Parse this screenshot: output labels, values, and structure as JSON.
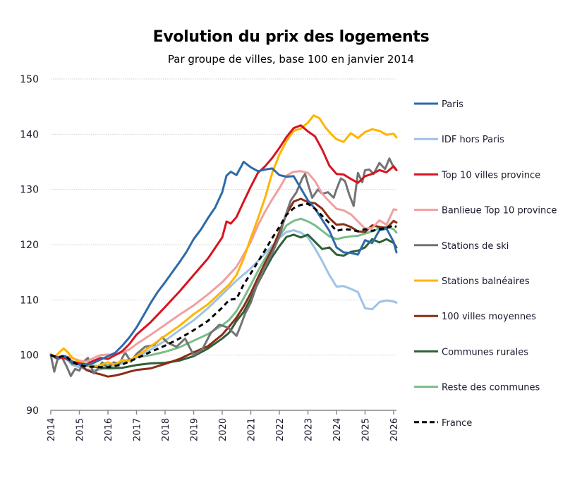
{
  "chart_data": {
    "type": "line",
    "title": "Evolution du prix des logements",
    "subtitle": "Par groupe de villes, base 100 en janvier 2014",
    "xlabel": "",
    "ylabel": "",
    "xlim": [
      2014,
      2026.1
    ],
    "ylim": [
      90,
      150
    ],
    "yticks": [
      90,
      100,
      110,
      120,
      130,
      140,
      150
    ],
    "xticks": [
      "2014",
      "2015",
      "2016",
      "2017",
      "2018",
      "2019",
      "2020",
      "2021",
      "2022",
      "2023",
      "2024",
      "2025",
      "2026"
    ],
    "grid": "horizontal-dotted",
    "legend_position": "right",
    "series": [
      {
        "name": "Paris",
        "color": "#2e6aa8",
        "dash": false,
        "x": [
          2014,
          2014.25,
          2014.5,
          2014.75,
          2015,
          2015.25,
          2015.5,
          2015.75,
          2016,
          2016.25,
          2016.5,
          2016.75,
          2017,
          2017.25,
          2017.5,
          2017.75,
          2018,
          2018.25,
          2018.5,
          2018.75,
          2019,
          2019.25,
          2019.5,
          2019.75,
          2020,
          2020.15,
          2020.3,
          2020.5,
          2020.75,
          2021,
          2021.25,
          2021.5,
          2021.75,
          2022,
          2022.25,
          2022.5,
          2022.75,
          2023,
          2023.25,
          2023.5,
          2023.75,
          2024,
          2024.25,
          2024.5,
          2024.75,
          2025,
          2025.25,
          2025.5,
          2025.75,
          2026,
          2026.1
        ],
        "y": [
          100,
          99.5,
          99.8,
          98.6,
          98.3,
          98.2,
          98.6,
          99.2,
          99.8,
          100.4,
          101.7,
          103.2,
          105,
          107.2,
          109.5,
          111.5,
          113.2,
          115,
          116.8,
          118.7,
          121,
          122.7,
          124.8,
          126.7,
          129.5,
          132.5,
          133.2,
          132.6,
          135,
          134,
          133.3,
          133.6,
          133.8,
          132.6,
          132.3,
          132.4,
          130.2,
          128,
          126.5,
          124.5,
          122.5,
          119.5,
          118.6,
          118.5,
          118.2,
          120.8,
          120.3,
          122.6,
          122.9,
          120.5,
          118.6
        ]
      },
      {
        "name": "IDF hors Paris",
        "color": "#9dc3e6",
        "dash": false,
        "x": [
          2014,
          2014.25,
          2014.5,
          2014.75,
          2015,
          2015.25,
          2015.5,
          2015.75,
          2016,
          2016.5,
          2017,
          2017.5,
          2018,
          2018.5,
          2019,
          2019.5,
          2020,
          2020.5,
          2021,
          2021.5,
          2022,
          2022.25,
          2022.5,
          2022.75,
          2023,
          2023.25,
          2023.5,
          2023.75,
          2024,
          2024.25,
          2024.5,
          2024.75,
          2025,
          2025.25,
          2025.5,
          2025.75,
          2026,
          2026.1
        ],
        "y": [
          100,
          99.5,
          99.5,
          98.2,
          97.8,
          97.4,
          97.3,
          97.4,
          97.8,
          98.5,
          99.6,
          101,
          102.6,
          104.5,
          106.3,
          108.5,
          111,
          113.5,
          115.7,
          118.4,
          121.2,
          122.3,
          122.6,
          122.2,
          121.3,
          119.3,
          117,
          114.5,
          112.4,
          112.5,
          112,
          111.4,
          108.5,
          108.3,
          109.6,
          109.9,
          109.7,
          109.5
        ]
      },
      {
        "name": "Top 10 villes province",
        "color": "#d7141f",
        "dash": false,
        "x": [
          2014,
          2014.25,
          2014.5,
          2014.75,
          2015,
          2015.25,
          2015.5,
          2015.75,
          2016,
          2016.25,
          2016.5,
          2016.75,
          2017,
          2017.5,
          2018,
          2018.5,
          2019,
          2019.5,
          2020,
          2020.15,
          2020.3,
          2020.5,
          2020.75,
          2021,
          2021.25,
          2021.5,
          2021.75,
          2022,
          2022.25,
          2022.5,
          2022.75,
          2023,
          2023.25,
          2023.5,
          2023.75,
          2024,
          2024.25,
          2024.5,
          2024.75,
          2025,
          2025.25,
          2025.5,
          2025.75,
          2026,
          2026.1
        ],
        "y": [
          100,
          99.6,
          99.4,
          98.8,
          98.5,
          98.3,
          99,
          99.5,
          99.3,
          100,
          100.7,
          102,
          103.7,
          106,
          108.7,
          111.5,
          114.5,
          117.5,
          121.3,
          124.2,
          123.8,
          125,
          127.8,
          130.5,
          133,
          134.2,
          135.7,
          137.5,
          139.5,
          141.1,
          141.6,
          140.5,
          139.6,
          137.2,
          134.3,
          132.8,
          132.7,
          131.9,
          131.2,
          132.4,
          132.8,
          133.5,
          133.1,
          134.2,
          133.5
        ]
      },
      {
        "name": "Banlieue Top 10 province",
        "color": "#f0a09e",
        "dash": false,
        "x": [
          2014,
          2014.25,
          2014.5,
          2014.75,
          2015,
          2015.25,
          2015.5,
          2015.75,
          2016,
          2016.25,
          2016.5,
          2016.75,
          2017,
          2017.5,
          2018,
          2018.5,
          2019,
          2019.5,
          2020,
          2020.5,
          2020.75,
          2021,
          2021.25,
          2021.5,
          2021.75,
          2022,
          2022.25,
          2022.5,
          2022.75,
          2023,
          2023.25,
          2023.5,
          2023.75,
          2024,
          2024.25,
          2024.5,
          2024.75,
          2025,
          2025.25,
          2025.5,
          2025.75,
          2026,
          2026.1
        ],
        "y": [
          100,
          99.6,
          99.8,
          99.5,
          99,
          98.8,
          99.5,
          100,
          100.1,
          100,
          100.5,
          101,
          102,
          103.7,
          105.5,
          107.3,
          109,
          111,
          113.2,
          116,
          118.2,
          120.5,
          123.5,
          126,
          128.2,
          130.2,
          132.5,
          133.2,
          133.3,
          133,
          131.5,
          129.2,
          127.8,
          126.5,
          126.2,
          125.5,
          124.2,
          122.9,
          123,
          124.4,
          123.6,
          126.4,
          126.3
        ]
      },
      {
        "name": "Stations de ski",
        "color": "#737373",
        "dash": false,
        "x": [
          2014,
          2014.12,
          2014.25,
          2014.4,
          2014.55,
          2014.7,
          2014.85,
          2015,
          2015.15,
          2015.3,
          2015.5,
          2015.65,
          2015.8,
          2016,
          2016.2,
          2016.4,
          2016.6,
          2016.8,
          2017,
          2017.3,
          2017.6,
          2017.9,
          2018.1,
          2018.4,
          2018.7,
          2019,
          2019.3,
          2019.6,
          2019.9,
          2020.2,
          2020.5,
          2020.65,
          2020.8,
          2021,
          2021.2,
          2021.5,
          2021.8,
          2022,
          2022.2,
          2022.4,
          2022.6,
          2022.8,
          2022.9,
          2023,
          2023.15,
          2023.35,
          2023.5,
          2023.7,
          2023.9,
          2024,
          2024.15,
          2024.3,
          2024.45,
          2024.6,
          2024.75,
          2024.9,
          2025,
          2025.15,
          2025.3,
          2025.5,
          2025.7,
          2025.85,
          2026,
          2026.1
        ],
        "y": [
          100,
          97,
          99.5,
          99.5,
          98,
          96.2,
          97.5,
          97.2,
          98.8,
          99.5,
          96.7,
          97.5,
          98.7,
          97.7,
          98.7,
          98.4,
          100.5,
          98.8,
          100.2,
          101.5,
          101.8,
          103.2,
          102.2,
          101.5,
          103,
          100,
          101,
          104,
          105.5,
          105,
          103.5,
          105.4,
          107.5,
          109.5,
          112.5,
          116,
          119,
          121.5,
          125,
          128,
          129.5,
          132,
          132.8,
          131,
          128.5,
          130,
          129.2,
          129.5,
          128.5,
          130,
          132,
          131.5,
          129,
          127,
          133,
          131.3,
          133.5,
          133.6,
          132.8,
          134.8,
          133.7,
          135.6,
          134,
          133.5
        ]
      },
      {
        "name": "Stations balnéaires",
        "color": "#ffb400",
        "dash": false,
        "x": [
          2014,
          2014.15,
          2014.3,
          2014.45,
          2014.6,
          2014.75,
          2015,
          2015.25,
          2015.5,
          2015.75,
          2016,
          2016.25,
          2016.5,
          2016.75,
          2017,
          2017.5,
          2018,
          2018.5,
          2019,
          2019.5,
          2020,
          2020.25,
          2020.5,
          2020.75,
          2021,
          2021.25,
          2021.5,
          2021.75,
          2022,
          2022.25,
          2022.5,
          2022.75,
          2023,
          2023.2,
          2023.4,
          2023.6,
          2023.8,
          2024,
          2024.25,
          2024.5,
          2024.75,
          2025,
          2025.25,
          2025.5,
          2025.75,
          2026,
          2026.1
        ],
        "y": [
          100.2,
          99.7,
          100.5,
          101.2,
          100.5,
          99.5,
          98.8,
          98.2,
          97.9,
          98.2,
          98.7,
          98.3,
          99.1,
          99,
          99.8,
          101.6,
          103.5,
          105.3,
          107.4,
          109.2,
          111.6,
          112.8,
          114.5,
          117.5,
          121.2,
          124.7,
          128.5,
          133,
          136.3,
          138.8,
          140.6,
          141,
          142.1,
          143.4,
          142.9,
          141.3,
          140.1,
          139.1,
          138.6,
          140.2,
          139.3,
          140.4,
          140.9,
          140.6,
          139.9,
          140.1,
          139.4
        ]
      },
      {
        "name": "100 villes moyennes",
        "color": "#8b2c16",
        "dash": false,
        "x": [
          2014,
          2014.25,
          2014.5,
          2014.75,
          2015,
          2015.25,
          2015.5,
          2015.75,
          2016,
          2016.25,
          2016.5,
          2016.75,
          2017,
          2017.5,
          2018,
          2018.5,
          2019,
          2019.5,
          2020,
          2020.25,
          2020.5,
          2020.75,
          2021,
          2021.25,
          2021.5,
          2021.75,
          2022,
          2022.25,
          2022.5,
          2022.75,
          2023,
          2023.25,
          2023.5,
          2023.75,
          2024,
          2024.25,
          2024.5,
          2024.75,
          2025,
          2025.25,
          2025.5,
          2025.75,
          2026,
          2026.1
        ],
        "y": [
          100,
          99.3,
          99.8,
          98.5,
          98.3,
          97.3,
          96.8,
          96.5,
          96.1,
          96.3,
          96.6,
          97,
          97.3,
          97.6,
          98.4,
          99.3,
          100.5,
          101.6,
          103.7,
          105.2,
          106.8,
          108.8,
          111.2,
          114,
          116.7,
          119.2,
          122.3,
          125.5,
          127.8,
          128.3,
          127.7,
          127.5,
          126.5,
          124.8,
          123.6,
          123.7,
          123.2,
          122.4,
          122.3,
          123.5,
          123.2,
          123,
          124.3,
          124
        ]
      },
      {
        "name": "Communes rurales",
        "color": "#2f5f36",
        "dash": false,
        "x": [
          2014,
          2014.25,
          2014.5,
          2014.75,
          2015,
          2015.25,
          2015.5,
          2015.75,
          2016,
          2016.5,
          2017,
          2017.5,
          2018,
          2018.5,
          2019,
          2019.5,
          2020,
          2020.25,
          2020.5,
          2020.75,
          2021,
          2021.25,
          2021.5,
          2021.75,
          2022,
          2022.25,
          2022.5,
          2022.75,
          2023,
          2023.25,
          2023.5,
          2023.75,
          2024,
          2024.25,
          2024.5,
          2024.75,
          2025,
          2025.25,
          2025.5,
          2025.75,
          2026,
          2026.1
        ],
        "y": [
          100,
          99.5,
          99.8,
          98.7,
          98.3,
          98.1,
          97.9,
          97.7,
          97.6,
          97.7,
          98.2,
          98.5,
          98.6,
          99,
          99.8,
          101.2,
          103,
          104.1,
          106.2,
          107.8,
          110.3,
          113,
          115.5,
          117.8,
          119.7,
          121.4,
          121.8,
          121.3,
          121.8,
          120.5,
          119.2,
          119.5,
          118.2,
          118,
          118.7,
          118.9,
          119.5,
          121,
          120.4,
          121,
          120.3,
          119.5
        ]
      },
      {
        "name": "Reste des communes",
        "color": "#79bd8a",
        "dash": false,
        "x": [
          2014,
          2014.25,
          2014.5,
          2014.75,
          2015,
          2015.25,
          2015.5,
          2015.75,
          2016,
          2016.5,
          2017,
          2017.5,
          2018,
          2018.5,
          2019,
          2019.5,
          2020,
          2020.25,
          2020.5,
          2020.75,
          2021,
          2021.25,
          2021.5,
          2021.75,
          2022,
          2022.25,
          2022.5,
          2022.75,
          2023,
          2023.25,
          2023.5,
          2023.75,
          2024,
          2024.25,
          2024.5,
          2024.75,
          2025,
          2025.25,
          2025.5,
          2025.75,
          2026,
          2026.1
        ],
        "y": [
          100,
          99.5,
          99.8,
          98.9,
          98.5,
          98.3,
          98.1,
          98,
          98.2,
          98.8,
          99.6,
          100,
          100.6,
          101.4,
          102.6,
          103.8,
          105.4,
          106.4,
          108,
          110.3,
          112.7,
          115.2,
          117.5,
          119.5,
          121.4,
          123.5,
          124.3,
          124.7,
          124.2,
          123.5,
          122.5,
          121.5,
          121,
          121.3,
          121.5,
          121.6,
          122,
          122.4,
          123,
          123.2,
          122.8,
          122.2
        ]
      },
      {
        "name": "France",
        "color": "#000000",
        "dash": true,
        "x": [
          2014,
          2014.25,
          2014.5,
          2014.75,
          2015,
          2015.25,
          2015.5,
          2015.75,
          2016,
          2016.5,
          2017,
          2017.5,
          2018,
          2018.5,
          2019,
          2019.5,
          2020,
          2020.25,
          2020.5,
          2020.75,
          2021,
          2021.25,
          2021.5,
          2021.75,
          2022,
          2022.25,
          2022.5,
          2022.75,
          2023,
          2023.25,
          2023.5,
          2023.75,
          2024,
          2024.25,
          2024.5,
          2024.75,
          2025,
          2025.25,
          2025.5,
          2025.75,
          2026,
          2026.1
        ],
        "y": [
          100,
          99.6,
          99.9,
          98.8,
          98.2,
          97.9,
          97.9,
          97.8,
          97.8,
          98.3,
          99.4,
          100.6,
          101.7,
          103,
          104.5,
          106.2,
          108.6,
          110,
          110.2,
          112.8,
          114.8,
          116.9,
          119,
          121.2,
          123.2,
          125.4,
          126.6,
          127.2,
          127.4,
          126.5,
          125.2,
          123.9,
          122.5,
          122.8,
          122.7,
          122.4,
          122.8,
          122.5,
          122.8,
          123,
          123.5,
          123.2
        ]
      }
    ]
  }
}
